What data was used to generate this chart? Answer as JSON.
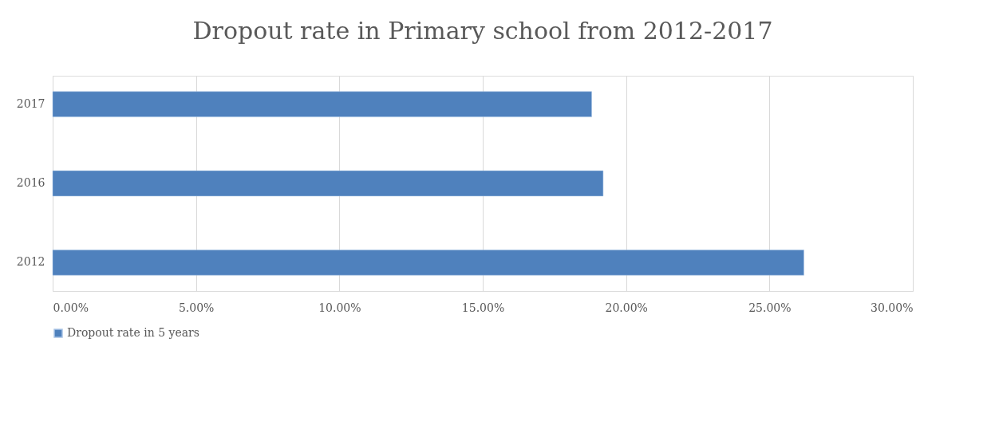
{
  "chart_data": {
    "type": "bar",
    "orientation": "horizontal",
    "title": "Dropout rate in Primary school from 2012-2017",
    "categories": [
      "2017",
      "2016",
      "2012"
    ],
    "series": [
      {
        "name": "Dropout rate in 5 years",
        "color": "#4f81bd",
        "values": [
          18.8,
          19.2,
          26.2
        ]
      }
    ],
    "xlim": [
      0,
      30
    ],
    "xticks": [
      {
        "value": 0,
        "label": "0.00%"
      },
      {
        "value": 5,
        "label": "5.00%"
      },
      {
        "value": 10,
        "label": "10.00%"
      },
      {
        "value": 15,
        "label": "15.00%"
      },
      {
        "value": 20,
        "label": "20.00%"
      },
      {
        "value": 25,
        "label": "25.00%"
      },
      {
        "value": 30,
        "label": "30.00%"
      }
    ],
    "grid": "x",
    "legend": "bottom"
  }
}
